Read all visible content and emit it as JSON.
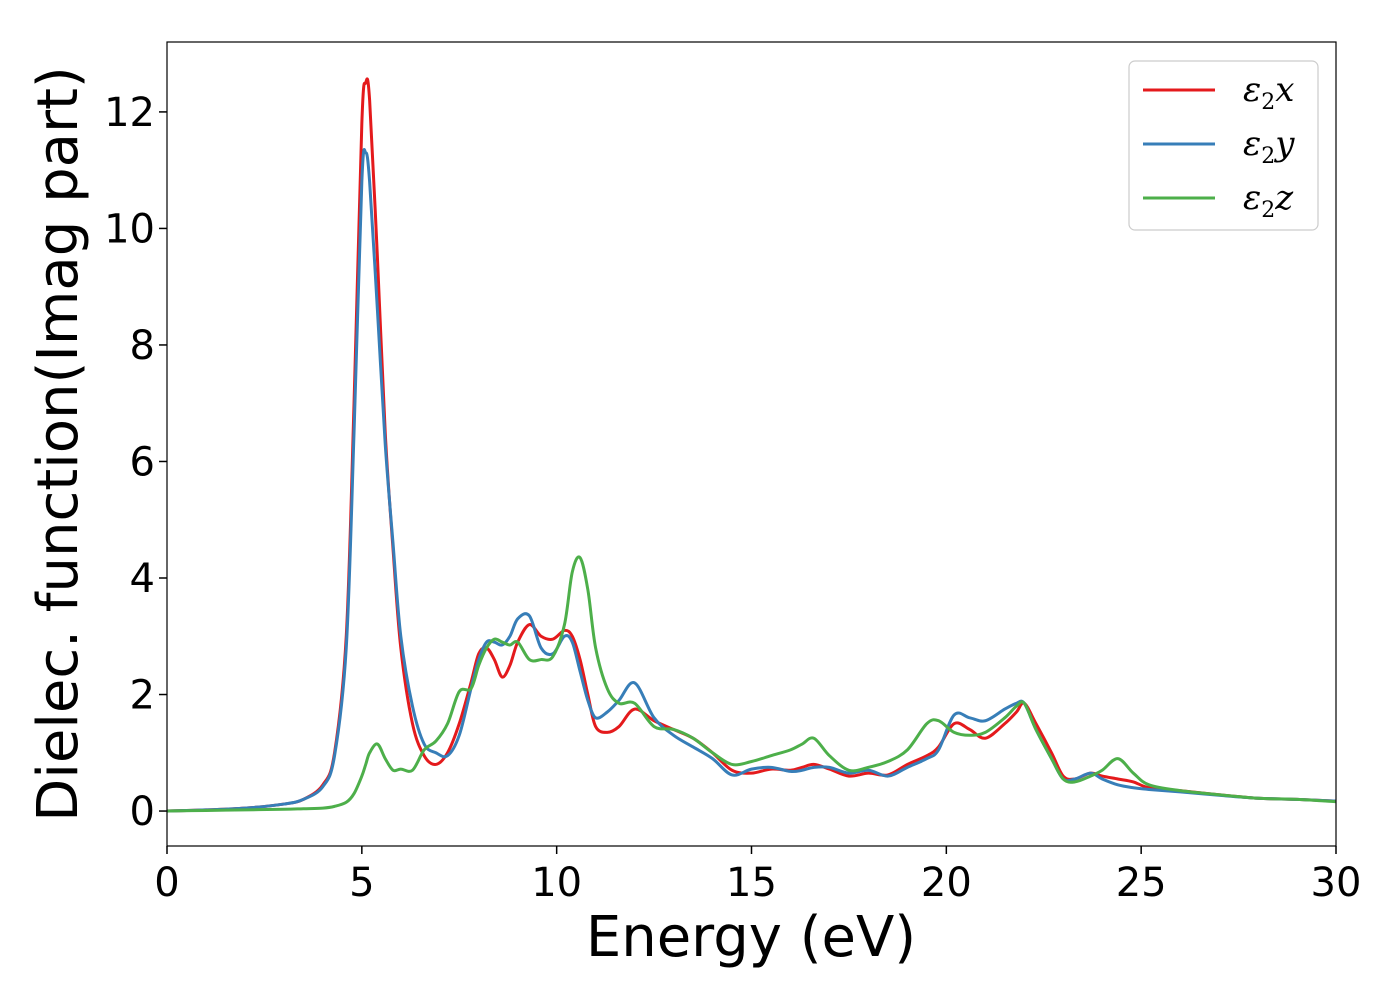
{
  "chart_data": {
    "type": "line",
    "xlabel": "Energy (eV)",
    "ylabel": "Dielec. function(Imag part)",
    "xlim": [
      0,
      30
    ],
    "ylim": [
      -0.6,
      13.2
    ],
    "xticks": [
      0,
      5,
      10,
      15,
      20,
      25,
      30
    ],
    "yticks": [
      0,
      2,
      4,
      6,
      8,
      10,
      12
    ],
    "grid": false,
    "legend_position": "top-right",
    "x": [
      0,
      1,
      2,
      3,
      3.5,
      4,
      4.3,
      4.6,
      4.8,
      5.0,
      5.1,
      5.2,
      5.4,
      5.6,
      5.8,
      6.0,
      6.3,
      6.6,
      6.9,
      7.2,
      7.5,
      7.8,
      8.0,
      8.2,
      8.4,
      8.6,
      8.8,
      9.0,
      9.3,
      9.6,
      9.9,
      10.2,
      10.4,
      10.6,
      10.8,
      11.0,
      11.3,
      11.6,
      12.0,
      12.5,
      13.0,
      13.5,
      14.0,
      14.5,
      15.0,
      15.5,
      16.0,
      16.3,
      16.6,
      17.0,
      17.5,
      18.0,
      18.5,
      19.0,
      19.5,
      19.8,
      20.2,
      20.6,
      21.0,
      21.5,
      21.8,
      22.0,
      22.3,
      22.7,
      23.0,
      23.3,
      23.7,
      24.0,
      24.4,
      24.8,
      25.2,
      26.0,
      27.0,
      28.0,
      29.0,
      30.0
    ],
    "series": [
      {
        "name": "ε2x",
        "color": "#e41a1c",
        "values": [
          0.0,
          0.02,
          0.05,
          0.12,
          0.2,
          0.45,
          1.0,
          3.0,
          7.0,
          11.8,
          12.5,
          12.2,
          9.5,
          6.5,
          4.5,
          2.8,
          1.5,
          0.95,
          0.8,
          1.0,
          1.5,
          2.2,
          2.7,
          2.8,
          2.6,
          2.3,
          2.5,
          2.9,
          3.2,
          3.0,
          2.95,
          3.1,
          3.0,
          2.6,
          2.0,
          1.45,
          1.35,
          1.45,
          1.75,
          1.55,
          1.4,
          1.25,
          1.0,
          0.7,
          0.65,
          0.72,
          0.7,
          0.75,
          0.8,
          0.72,
          0.6,
          0.65,
          0.62,
          0.8,
          0.95,
          1.1,
          1.5,
          1.4,
          1.25,
          1.5,
          1.7,
          1.85,
          1.5,
          1.0,
          0.6,
          0.55,
          0.65,
          0.6,
          0.55,
          0.5,
          0.4,
          0.35,
          0.28,
          0.22,
          0.2,
          0.17
        ]
      },
      {
        "name": "ε2y",
        "color": "#377eb8",
        "values": [
          0.0,
          0.02,
          0.05,
          0.12,
          0.2,
          0.42,
          0.95,
          2.8,
          6.5,
          10.8,
          11.3,
          10.8,
          8.6,
          6.3,
          4.6,
          3.0,
          1.8,
          1.15,
          1.0,
          0.95,
          1.3,
          2.1,
          2.6,
          2.9,
          2.9,
          2.85,
          3.0,
          3.3,
          3.35,
          2.8,
          2.7,
          3.0,
          2.9,
          2.4,
          1.9,
          1.6,
          1.7,
          1.9,
          2.2,
          1.6,
          1.3,
          1.1,
          0.9,
          0.62,
          0.72,
          0.75,
          0.68,
          0.7,
          0.75,
          0.75,
          0.65,
          0.7,
          0.6,
          0.75,
          0.9,
          1.05,
          1.65,
          1.6,
          1.55,
          1.75,
          1.85,
          1.85,
          1.4,
          0.9,
          0.55,
          0.55,
          0.65,
          0.55,
          0.45,
          0.4,
          0.37,
          0.33,
          0.27,
          0.22,
          0.2,
          0.17
        ]
      },
      {
        "name": "ε2z",
        "color": "#4daf4a",
        "values": [
          0.0,
          0.01,
          0.02,
          0.03,
          0.04,
          0.05,
          0.08,
          0.15,
          0.3,
          0.6,
          0.8,
          1.0,
          1.15,
          0.9,
          0.7,
          0.72,
          0.7,
          1.05,
          1.2,
          1.5,
          2.05,
          2.1,
          2.5,
          2.8,
          2.95,
          2.9,
          2.85,
          2.9,
          2.6,
          2.6,
          2.65,
          3.2,
          4.1,
          4.35,
          3.8,
          2.8,
          2.1,
          1.85,
          1.85,
          1.45,
          1.4,
          1.25,
          1.0,
          0.8,
          0.85,
          0.95,
          1.05,
          1.15,
          1.25,
          0.95,
          0.7,
          0.75,
          0.85,
          1.05,
          1.5,
          1.55,
          1.35,
          1.3,
          1.35,
          1.6,
          1.8,
          1.85,
          1.4,
          0.9,
          0.55,
          0.5,
          0.6,
          0.7,
          0.9,
          0.65,
          0.45,
          0.35,
          0.28,
          0.22,
          0.2,
          0.16
        ]
      }
    ]
  }
}
